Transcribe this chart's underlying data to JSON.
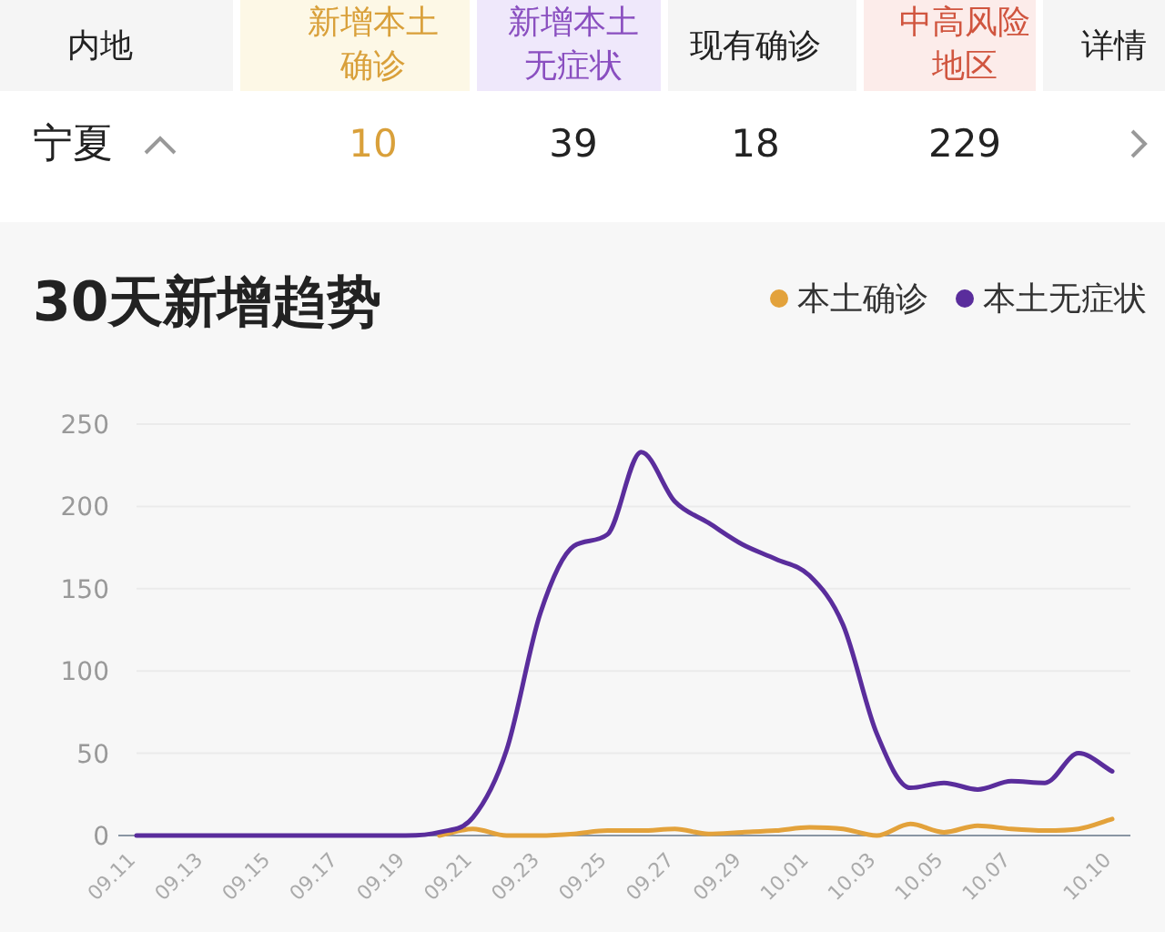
{
  "chart_data": [
    {
      "type": "other",
      "categories": [
        "内地",
        "新增本土确诊",
        "新增本土无症状",
        "现有确诊",
        "中高风险地区",
        "详情"
      ],
      "colors": [
        "#f5f5f5",
        "#fdf8e6",
        "#efe8fb",
        "#f5f5f5",
        "#fcecea",
        "#f5f5f5"
      ],
      "annotations": [
        "宁夏",
        "10",
        "39",
        "18",
        "229"
      ]
    },
    {
      "type": "line",
      "title": "30天新增趋势",
      "categories": [
        "09.11",
        null,
        "09.13",
        null,
        "09.15",
        null,
        "09.17",
        null,
        "09.19",
        null,
        "09.21",
        null,
        "09.23",
        null,
        "09.25",
        null,
        "09.27",
        null,
        "09.29",
        null,
        "10.01",
        null,
        "10.03",
        null,
        "10.05",
        null,
        "10.07",
        null,
        null,
        "10.10"
      ],
      "series": [
        {
          "name": "本土确诊",
          "color": "#e3a23b",
          "values": [
            null,
            null,
            null,
            null,
            null,
            null,
            null,
            null,
            null,
            0,
            4,
            0,
            0,
            1,
            3,
            3,
            4,
            1,
            2,
            3,
            5,
            4,
            0,
            7,
            2,
            6,
            4,
            3,
            4,
            10
          ]
        },
        {
          "name": "本土无症状",
          "color": "#5a2d9c",
          "values": [
            0,
            0,
            0,
            0,
            0,
            0,
            0,
            0,
            0,
            2,
            11,
            52,
            135,
            176,
            183,
            233,
            203,
            190,
            177,
            168,
            158,
            128,
            62,
            29,
            32,
            28,
            33,
            32,
            50,
            39
          ]
        }
      ],
      "ylim": [
        0,
        250
      ],
      "yticks": [
        0,
        50,
        100,
        150,
        200,
        250
      ],
      "grid": "y",
      "legend": "top right",
      "marker": "none",
      "line_style": "solid"
    }
  ]
}
